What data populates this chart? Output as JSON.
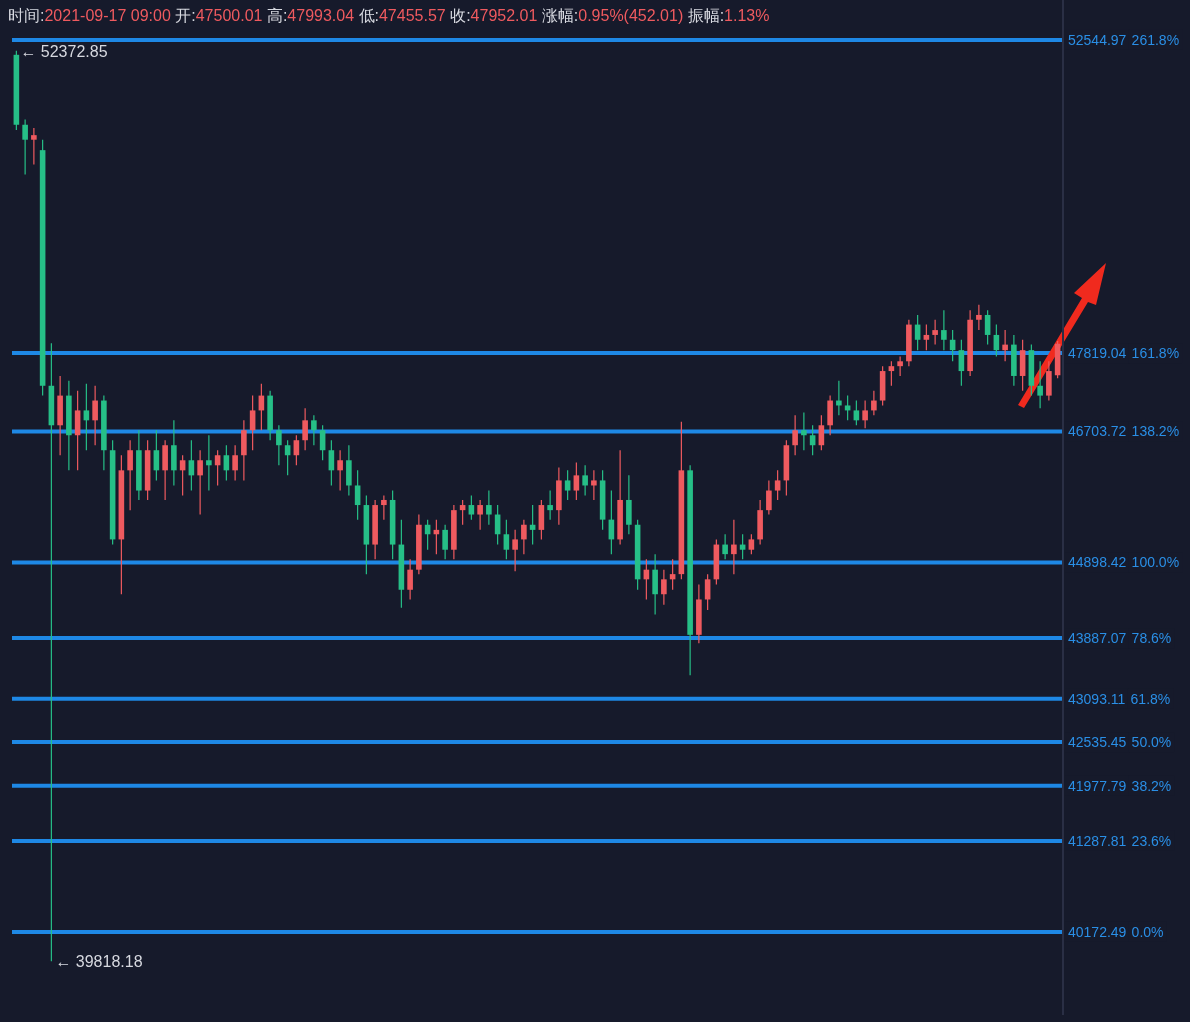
{
  "chart_data": {
    "type": "candlestick",
    "log": true,
    "ylim": [
      39180,
      53180
    ],
    "tick_labels": "y",
    "grid": false,
    "yticks": [
      52544.97,
      47819.04,
      46703.72,
      44898.42,
      43887.07,
      43093.11,
      42535.45,
      41977.79,
      41287.81,
      40172.49
    ],
    "annotations": [
      "时间:2021-09-17 09:00 开:47500.01 高:47993.04 低:47455.57 收:47952.01 涨幅:0.95%(452.01) 振幅:1.13%",
      "← 52372.85",
      "← 39818.18",
      "261.8%",
      "161.8%",
      "138.2%",
      "100.0%",
      "78.6%",
      "61.8%",
      "50.0%",
      "38.2%",
      "23.6%",
      "0.0%"
    ],
    "ref_lines": [
      {
        "axis": "y",
        "value": 52544.97,
        "color": "#1e88e5"
      },
      {
        "axis": "y",
        "value": 47819.04,
        "color": "#1e88e5"
      },
      {
        "axis": "y",
        "value": 46703.72,
        "color": "#1e88e5"
      },
      {
        "axis": "y",
        "value": 44898.42,
        "color": "#1e88e5"
      },
      {
        "axis": "y",
        "value": 43887.07,
        "color": "#1e88e5"
      },
      {
        "axis": "y",
        "value": 43093.11,
        "color": "#1e88e5"
      },
      {
        "axis": "y",
        "value": 42535.45,
        "color": "#1e88e5"
      },
      {
        "axis": "y",
        "value": 41977.79,
        "color": "#1e88e5"
      },
      {
        "axis": "y",
        "value": 41287.81,
        "color": "#1e88e5"
      },
      {
        "axis": "y",
        "value": 40172.49,
        "color": "#1e88e5"
      }
    ],
    "categories": [
      null,
      null,
      null,
      null,
      null,
      null,
      null,
      null,
      null,
      null,
      null,
      null,
      null,
      null,
      null,
      null,
      null,
      null,
      null,
      null,
      null,
      null,
      null,
      null,
      null,
      null,
      null,
      null,
      null,
      null,
      null,
      null,
      null,
      null,
      null,
      null,
      null,
      null,
      null,
      null,
      null,
      null,
      null,
      null,
      null,
      null,
      null,
      null,
      null,
      null,
      null,
      null,
      null,
      null,
      null,
      null,
      null,
      null,
      null,
      null,
      null,
      null,
      null,
      null,
      null,
      null,
      null,
      null,
      null,
      null,
      null,
      null,
      null,
      null,
      null,
      null,
      null,
      null,
      null,
      null,
      null,
      null,
      null,
      null,
      null,
      null,
      null,
      null,
      null,
      null,
      null,
      null,
      null,
      null,
      null,
      null,
      null,
      null,
      null,
      null,
      null,
      null,
      null,
      null,
      null,
      null,
      null,
      null,
      null,
      null,
      null,
      null,
      null,
      null,
      null,
      null,
      null,
      null,
      null,
      null
    ],
    "ohlc": [
      [
        52310,
        52372.85,
        51140,
        51220
      ],
      [
        51220,
        51300,
        50460,
        50990
      ],
      [
        50990,
        51170,
        50610,
        51060
      ],
      [
        50830,
        50990,
        47210,
        47350
      ],
      [
        47350,
        47960,
        39818.18,
        46790
      ],
      [
        46790,
        47490,
        46370,
        47210
      ],
      [
        47210,
        47420,
        46160,
        46650
      ],
      [
        46650,
        47280,
        46160,
        47000
      ],
      [
        47000,
        47380,
        46440,
        46860
      ],
      [
        46860,
        47350,
        46510,
        47140
      ],
      [
        47140,
        47210,
        46160,
        46440
      ],
      [
        46440,
        46580,
        45140,
        45210
      ],
      [
        45210,
        46370,
        44470,
        46160
      ],
      [
        46160,
        46580,
        45610,
        46440
      ],
      [
        46440,
        46720,
        45750,
        45880
      ],
      [
        45880,
        46580,
        45750,
        46440
      ],
      [
        46440,
        46720,
        46020,
        46160
      ],
      [
        46160,
        46580,
        45750,
        46510
      ],
      [
        46510,
        46860,
        45950,
        46160
      ],
      [
        46160,
        46370,
        45810,
        46300
      ],
      [
        46300,
        46580,
        45880,
        46090
      ],
      [
        46090,
        46440,
        45550,
        46300
      ],
      [
        46300,
        46650,
        45880,
        46230
      ],
      [
        46230,
        46440,
        45950,
        46370
      ],
      [
        46370,
        46510,
        46020,
        46160
      ],
      [
        46160,
        46510,
        46020,
        46370
      ],
      [
        46370,
        46860,
        46020,
        46720
      ],
      [
        46720,
        47210,
        46440,
        47000
      ],
      [
        47000,
        47380,
        46720,
        47210
      ],
      [
        47210,
        47280,
        46580,
        46720
      ],
      [
        46720,
        46790,
        46230,
        46510
      ],
      [
        46510,
        46580,
        46090,
        46370
      ],
      [
        46370,
        46650,
        46230,
        46580
      ],
      [
        46580,
        47030,
        46440,
        46860
      ],
      [
        46860,
        46930,
        46510,
        46720
      ],
      [
        46720,
        46790,
        46300,
        46440
      ],
      [
        46440,
        46580,
        45950,
        46160
      ],
      [
        46160,
        46440,
        45880,
        46300
      ],
      [
        46300,
        46510,
        45810,
        45950
      ],
      [
        45950,
        46160,
        45480,
        45680
      ],
      [
        45680,
        45810,
        44740,
        45140
      ],
      [
        45140,
        45750,
        44940,
        45680
      ],
      [
        45680,
        45810,
        45480,
        45750
      ],
      [
        45750,
        45880,
        44940,
        45140
      ],
      [
        45140,
        45480,
        44290,
        44530
      ],
      [
        44530,
        44940,
        44400,
        44800
      ],
      [
        44800,
        45550,
        44740,
        45410
      ],
      [
        45410,
        45480,
        45070,
        45280
      ],
      [
        45280,
        45480,
        45010,
        45340
      ],
      [
        45340,
        45410,
        44940,
        45070
      ],
      [
        45070,
        45680,
        44940,
        45610
      ],
      [
        45610,
        45750,
        45410,
        45680
      ],
      [
        45680,
        45810,
        45480,
        45550
      ],
      [
        45550,
        45750,
        45340,
        45680
      ],
      [
        45680,
        45880,
        45410,
        45550
      ],
      [
        45550,
        45680,
        45140,
        45280
      ],
      [
        45280,
        45480,
        44940,
        45070
      ],
      [
        45070,
        45340,
        44780,
        45210
      ],
      [
        45210,
        45480,
        45010,
        45410
      ],
      [
        45410,
        45680,
        45140,
        45340
      ],
      [
        45340,
        45750,
        45210,
        45680
      ],
      [
        45680,
        45880,
        45480,
        45610
      ],
      [
        45610,
        46200,
        45410,
        46020
      ],
      [
        46020,
        46160,
        45750,
        45880
      ],
      [
        45880,
        46270,
        45750,
        46090
      ],
      [
        46090,
        46230,
        45810,
        45950
      ],
      [
        45950,
        46160,
        45750,
        46020
      ],
      [
        46020,
        46160,
        45340,
        45480
      ],
      [
        45480,
        45880,
        45010,
        45210
      ],
      [
        45210,
        46440,
        45140,
        45750
      ],
      [
        45750,
        46090,
        45280,
        45410
      ],
      [
        45410,
        45480,
        44530,
        44670
      ],
      [
        44670,
        44940,
        44400,
        44800
      ],
      [
        44800,
        45010,
        44200,
        44470
      ],
      [
        44470,
        44800,
        44330,
        44670
      ],
      [
        44670,
        44940,
        44530,
        44740
      ],
      [
        44740,
        46840,
        44670,
        46160
      ],
      [
        46160,
        46230,
        43400,
        43930
      ],
      [
        43930,
        44600,
        43820,
        44400
      ],
      [
        44400,
        44740,
        44260,
        44670
      ],
      [
        44670,
        45210,
        44600,
        45140
      ],
      [
        45140,
        45280,
        44940,
        45010
      ],
      [
        45010,
        45480,
        44740,
        45140
      ],
      [
        45140,
        45280,
        44940,
        45070
      ],
      [
        45070,
        45280,
        45010,
        45210
      ],
      [
        45210,
        45750,
        45140,
        45610
      ],
      [
        45610,
        46020,
        45550,
        45880
      ],
      [
        45880,
        46160,
        45750,
        46020
      ],
      [
        46020,
        46580,
        45810,
        46510
      ],
      [
        46510,
        46930,
        46370,
        46720
      ],
      [
        46720,
        46970,
        46440,
        46650
      ],
      [
        46650,
        46790,
        46370,
        46510
      ],
      [
        46510,
        46930,
        46440,
        46790
      ],
      [
        46790,
        47210,
        46650,
        47140
      ],
      [
        47140,
        47420,
        46930,
        47070
      ],
      [
        47070,
        47210,
        46860,
        47000
      ],
      [
        47000,
        47140,
        46790,
        46860
      ],
      [
        46860,
        47140,
        46750,
        47000
      ],
      [
        47000,
        47280,
        46930,
        47140
      ],
      [
        47140,
        47630,
        47070,
        47560
      ],
      [
        47560,
        47700,
        47350,
        47630
      ],
      [
        47630,
        47770,
        47490,
        47700
      ],
      [
        47700,
        48300,
        47630,
        48230
      ],
      [
        48230,
        48370,
        47860,
        48010
      ],
      [
        48010,
        48230,
        47860,
        48080
      ],
      [
        48080,
        48300,
        47940,
        48150
      ],
      [
        48150,
        48440,
        47860,
        48010
      ],
      [
        48010,
        48150,
        47700,
        47860
      ],
      [
        47860,
        48010,
        47350,
        47560
      ],
      [
        47560,
        48440,
        47490,
        48300
      ],
      [
        48300,
        48520,
        48150,
        48370
      ],
      [
        48370,
        48440,
        47940,
        48080
      ],
      [
        48080,
        48230,
        47770,
        47860
      ],
      [
        47860,
        48150,
        47700,
        47940
      ],
      [
        47940,
        48080,
        47350,
        47490
      ],
      [
        47490,
        48010,
        47280,
        47860
      ],
      [
        47860,
        47940,
        47210,
        47350
      ],
      [
        47350,
        47700,
        47030,
        47210
      ],
      [
        47210,
        47700,
        47140,
        47560
      ],
      [
        47500.01,
        47993.04,
        47455.57,
        47952.01
      ]
    ],
    "colors": [
      "#26bf87",
      "#26bf87",
      "#ef5a5f",
      "#26bf87",
      "#26bf87",
      "#ef5a5f",
      "#26bf87",
      "#ef5a5f",
      "#26bf87",
      "#ef5a5f",
      "#26bf87",
      "#26bf87",
      "#ef5a5f",
      "#ef5a5f",
      "#26bf87",
      "#ef5a5f",
      "#26bf87",
      "#ef5a5f",
      "#26bf87",
      "#ef5a5f",
      "#26bf87",
      "#ef5a5f",
      "#26bf87",
      "#ef5a5f",
      "#26bf87",
      "#ef5a5f",
      "#ef5a5f",
      "#ef5a5f",
      "#ef5a5f",
      "#26bf87",
      "#26bf87",
      "#26bf87",
      "#ef5a5f",
      "#ef5a5f",
      "#26bf87",
      "#26bf87",
      "#26bf87",
      "#ef5a5f",
      "#26bf87",
      "#26bf87",
      "#26bf87",
      "#ef5a5f",
      "#ef5a5f",
      "#26bf87",
      "#26bf87",
      "#ef5a5f",
      "#ef5a5f",
      "#26bf87",
      "#ef5a5f",
      "#26bf87",
      "#ef5a5f",
      "#ef5a5f",
      "#26bf87",
      "#ef5a5f",
      "#26bf87",
      "#26bf87",
      "#26bf87",
      "#ef5a5f",
      "#ef5a5f",
      "#26bf87",
      "#ef5a5f",
      "#26bf87",
      "#ef5a5f",
      "#26bf87",
      "#ef5a5f",
      "#26bf87",
      "#ef5a5f",
      "#26bf87",
      "#26bf87",
      "#ef5a5f",
      "#26bf87",
      "#26bf87",
      "#ef5a5f",
      "#26bf87",
      "#ef5a5f",
      "#ef5a5f",
      "#ef5a5f",
      "#26bf87",
      "#ef5a5f",
      "#ef5a5f",
      "#ef5a5f",
      "#26bf87",
      "#ef5a5f",
      "#26bf87",
      "#ef5a5f",
      "#ef5a5f",
      "#ef5a5f",
      "#ef5a5f",
      "#ef5a5f",
      "#ef5a5f",
      "#26bf87",
      "#26bf87",
      "#ef5a5f",
      "#ef5a5f",
      "#26bf87",
      "#26bf87",
      "#26bf87",
      "#ef5a5f",
      "#ef5a5f",
      "#ef5a5f",
      "#ef5a5f",
      "#ef5a5f",
      "#ef5a5f",
      "#26bf87",
      "#ef5a5f",
      "#ef5a5f",
      "#26bf87",
      "#26bf87",
      "#26bf87",
      "#ef5a5f",
      "#ef5a5f",
      "#26bf87",
      "#26bf87",
      "#ef5a5f",
      "#26bf87",
      "#ef5a5f",
      "#26bf87",
      "#26bf87",
      "#ef5a5f",
      "#ef5a5f"
    ]
  }
}
